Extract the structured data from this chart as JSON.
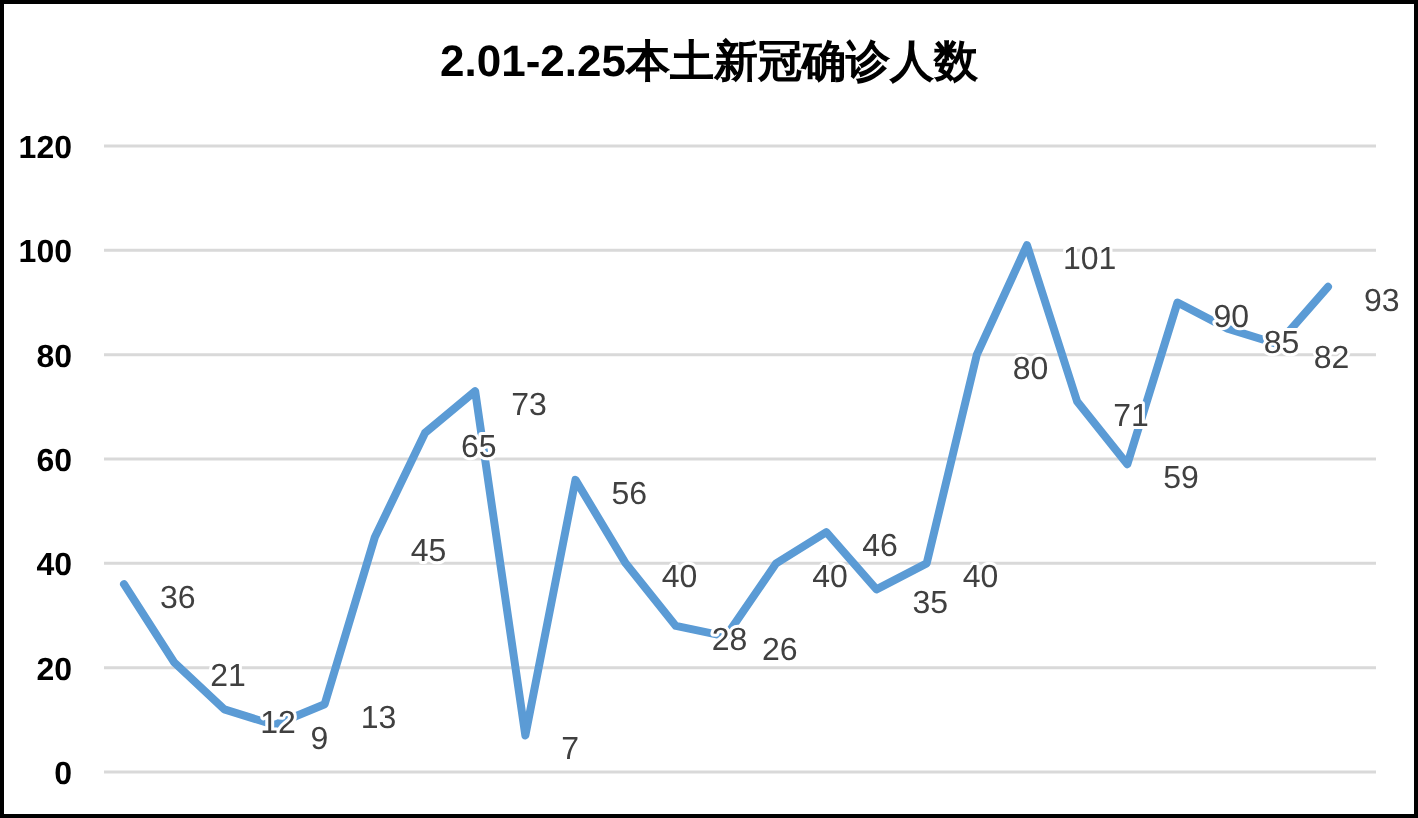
{
  "chart_data": {
    "type": "line",
    "title": "2.01-2.25本土新冠确诊人数",
    "categories": [
      null,
      null,
      null,
      null,
      null,
      null,
      null,
      null,
      null,
      null,
      null,
      null,
      null,
      null,
      null,
      null,
      null,
      null,
      null,
      null,
      null,
      null,
      null,
      null,
      null
    ],
    "series": [
      {
        "color": "#5b9bd5",
        "values": [
          36,
          21,
          12,
          9,
          13,
          45,
          65,
          73,
          7,
          56,
          40,
          28,
          26,
          40,
          46,
          35,
          40,
          80,
          101,
          71,
          59,
          90,
          85,
          82,
          93
        ]
      }
    ],
    "ylim": [
      0,
      120
    ],
    "yticks": [
      0,
      20,
      40,
      60,
      80,
      100,
      120
    ],
    "grid": "y",
    "data_labels": true,
    "marker": "none",
    "line_style": "solid",
    "tick_labels": "y"
  }
}
